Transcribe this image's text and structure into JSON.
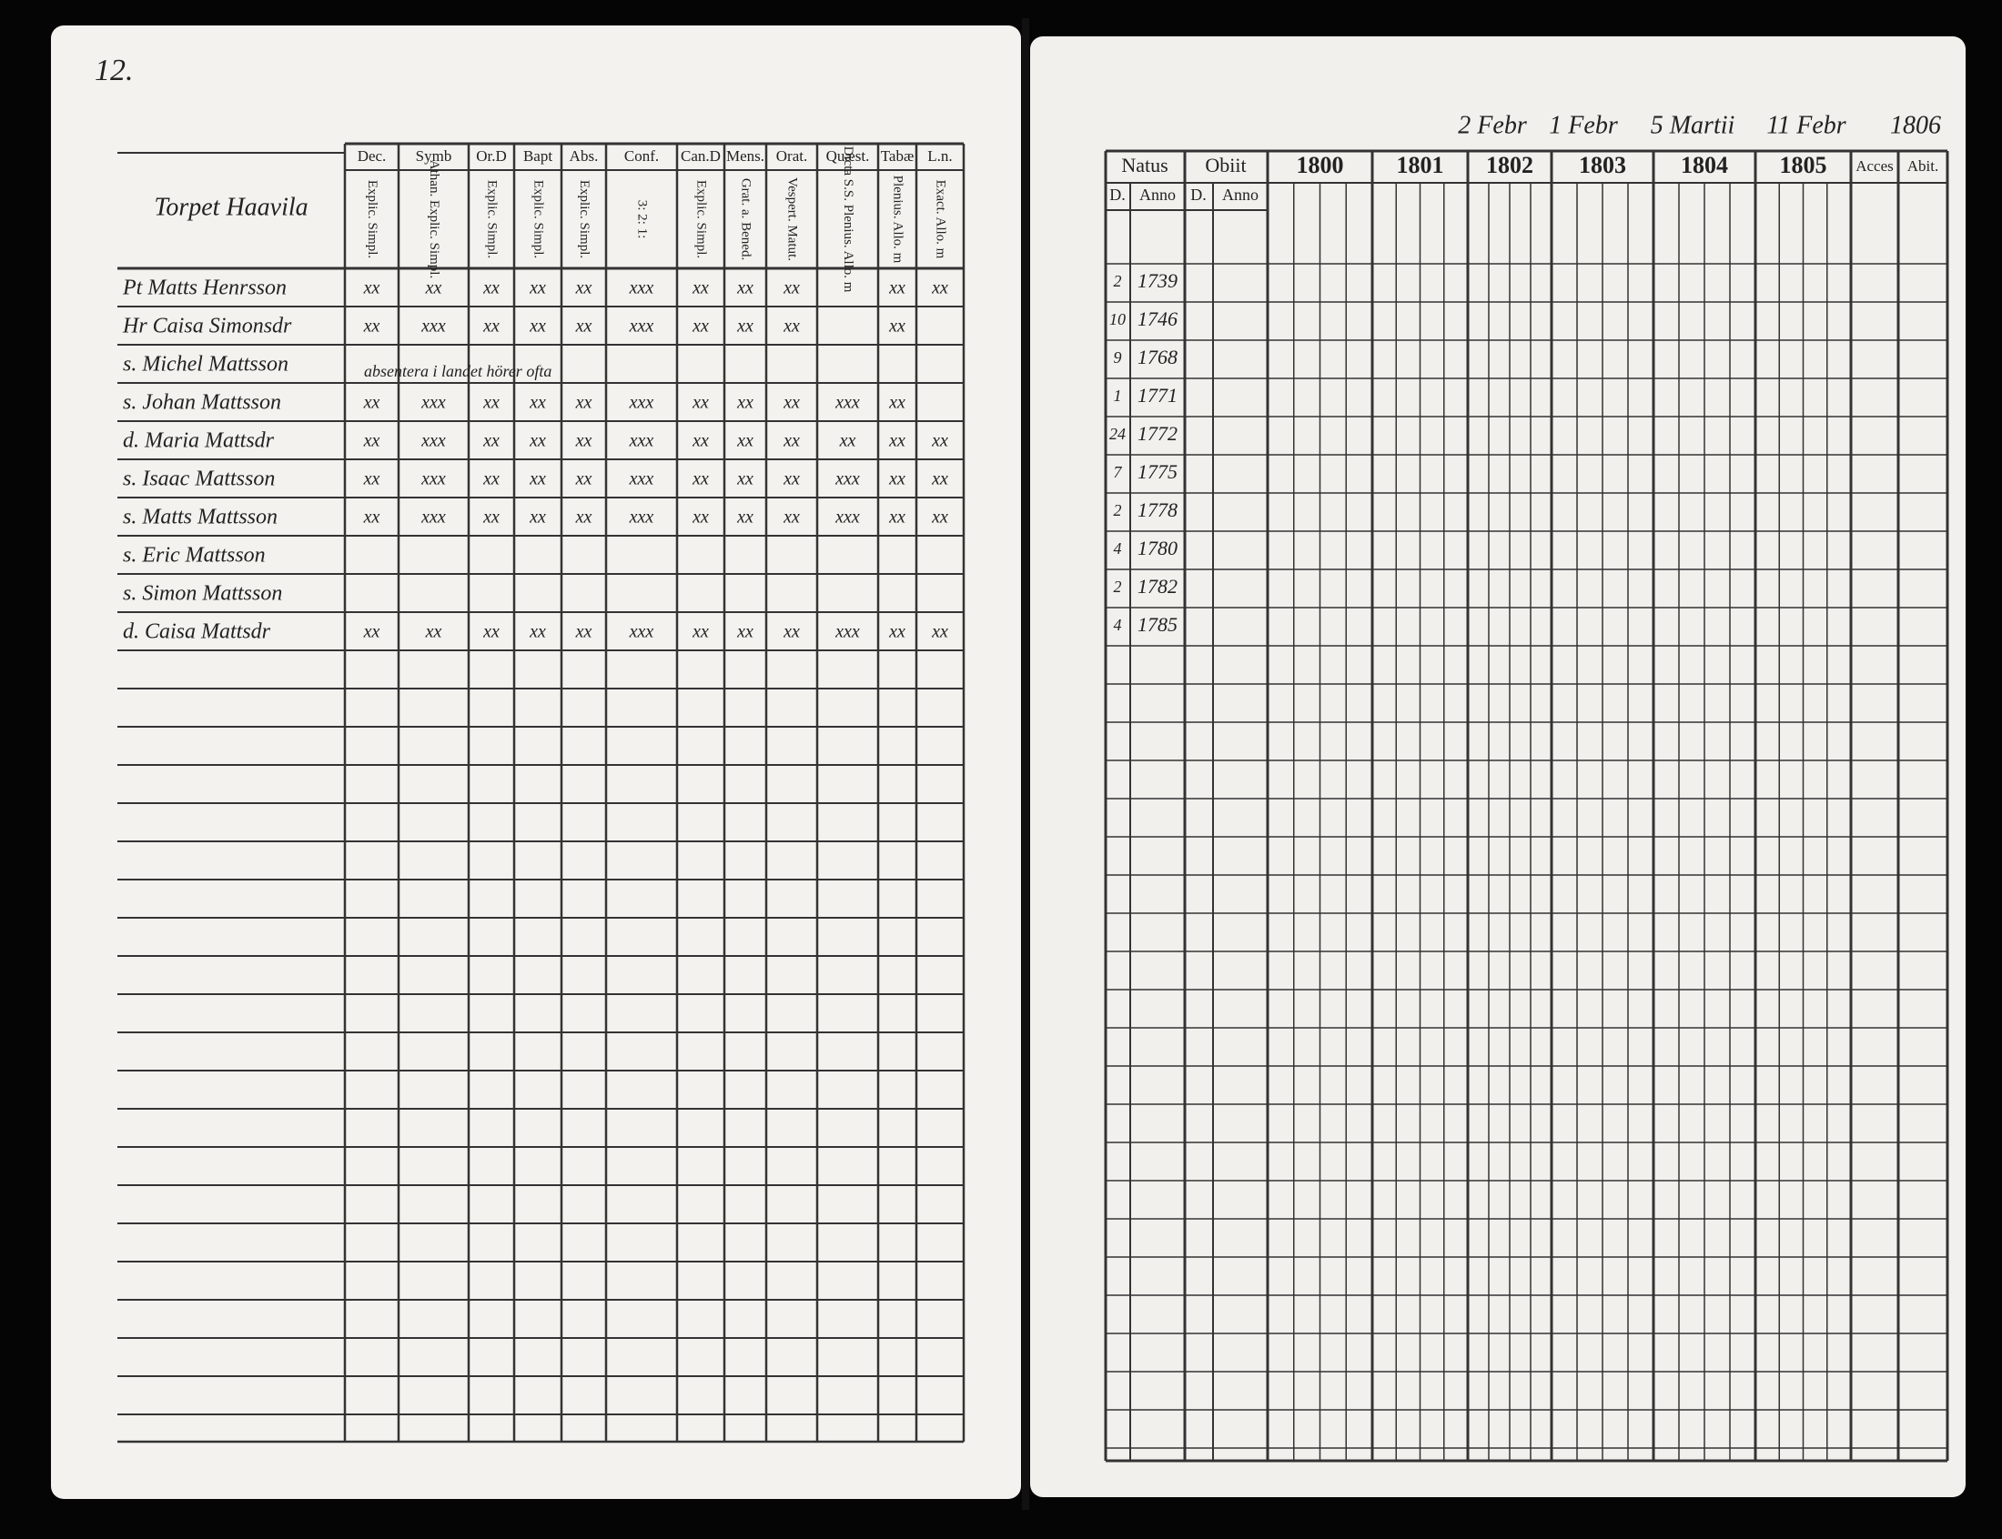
{
  "left_page": {
    "page_number": "12.",
    "table": {
      "name_header": "Torpet Haavila",
      "columns": [
        {
          "header": "Dec.",
          "subheader": "Explic. Simpl."
        },
        {
          "header": "Symb",
          "subheader": "Athan. Explic. Simpl."
        },
        {
          "header": "Or.D",
          "subheader": "Explic. Simpl."
        },
        {
          "header": "Bapt",
          "subheader": "Explic. Simpl."
        },
        {
          "header": "Abs.",
          "subheader": "Explic. Simpl."
        },
        {
          "header": "Conf.",
          "subheader": "3: 2: 1:"
        },
        {
          "header": "Can.D",
          "subheader": "Explic. Simpl."
        },
        {
          "header": "Mens.",
          "subheader": "Grat. a. Bened."
        },
        {
          "header": "Orat.",
          "subheader": "Vespert. Matut."
        },
        {
          "header": "Quæst.",
          "subheader": "Dicta S.S. Plenius. Allo. m"
        },
        {
          "header": "Tabæ",
          "subheader": "Plenius. Allo. m"
        },
        {
          "header": "L.n.",
          "subheader": "Exact. Allo. m"
        }
      ],
      "rows": [
        {
          "name": "Pt Matts Henrsson",
          "marks": [
            "xx",
            "xx",
            "xx",
            "xx",
            "xx",
            "xxx",
            "xx",
            "xx",
            "xx",
            null,
            "xx",
            "xx"
          ]
        },
        {
          "name": "Hr Caisa Simonsdr",
          "marks": [
            "xx",
            "xxx",
            "xx",
            "xx",
            "xx",
            "xxx",
            "xx",
            "xx",
            "xx",
            null,
            "xx",
            null
          ]
        },
        {
          "name": "s. Michel Mattsson",
          "note": "absentera i landet hörer ofta"
        },
        {
          "name": "s. Johan Mattsson",
          "marks": [
            "xx",
            "xxx",
            "xx",
            "xx",
            "xx",
            "xxx",
            "xx",
            "xx",
            "xx",
            "xxx",
            "xx",
            null
          ]
        },
        {
          "name": "d. Maria Mattsdr",
          "marks": [
            "xx",
            "xxx",
            "xx",
            "xx",
            "xx",
            "xxx",
            "xx",
            "xx",
            "xx",
            "xx",
            "xx",
            "xx"
          ]
        },
        {
          "name": "s. Isaac Mattsson",
          "marks": [
            "xx",
            "xxx",
            "xx",
            "xx",
            "xx",
            "xxx",
            "xx",
            "xx",
            "xx",
            "xxx",
            "xx",
            "xx"
          ]
        },
        {
          "name": "s. Matts Mattsson",
          "marks": [
            "xx",
            "xxx",
            "xx",
            "xx",
            "xx",
            "xxx",
            "xx",
            "xx",
            "xx",
            "xxx",
            "xx",
            "xx"
          ]
        },
        {
          "name": "s. Eric Mattsson"
        },
        {
          "name": "s. Simon Mattsson"
        },
        {
          "name": "d. Caisa Mattsdr",
          "marks": [
            "xx",
            "xx",
            "xx",
            "xx",
            "xx",
            "xxx",
            "xx",
            "xx",
            "xx",
            "xxx",
            "xx",
            "xx"
          ]
        }
      ]
    }
  },
  "right_page": {
    "dates": [
      "2 Febr",
      "1 Febr",
      "5 Martii",
      "11 Febr",
      "1806"
    ],
    "table": {
      "natus": "Natus",
      "obiit": "Obiit",
      "day": "D.",
      "anno": "Anno",
      "years": [
        "1800",
        "1801",
        "1802",
        "1803",
        "1804",
        "1805"
      ],
      "acces": "Acces",
      "abit": "Abit.",
      "rows": [
        {
          "day": "2",
          "year": "1739"
        },
        {
          "day": "10",
          "year": "1746"
        },
        {
          "day": "9",
          "year": "1768"
        },
        {
          "day": "1",
          "year": "1771"
        },
        {
          "day": "24",
          "year": "1772"
        },
        {
          "day": "7",
          "year": "1775"
        },
        {
          "day": "2",
          "year": "1778"
        },
        {
          "day": "4",
          "year": "1780"
        },
        {
          "day": "2",
          "year": "1782"
        },
        {
          "day": "4",
          "year": "1785"
        }
      ]
    }
  }
}
